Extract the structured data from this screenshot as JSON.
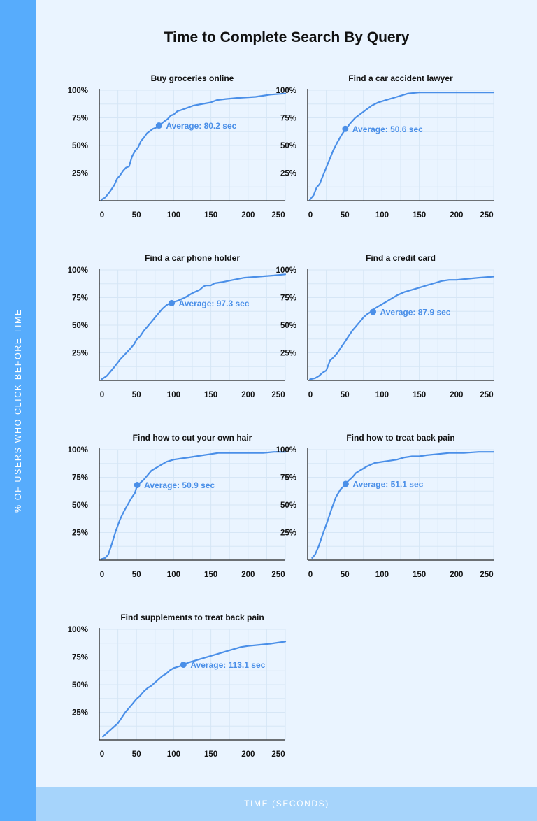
{
  "title": "Time to Complete Search By Query",
  "y_axis_label": "% of users who click before time",
  "x_axis_label": "Time (seconds)",
  "colors": {
    "background": "#eaf4ff",
    "left_bar": "#57acfc",
    "bottom_bar": "#a6d4fb",
    "line": "#4a8fe8",
    "grid": "#d6e6f6",
    "axis": "#222222"
  },
  "chart_data": [
    {
      "type": "line",
      "title": "Buy groceries online",
      "xlim": [
        0,
        250
      ],
      "ylim": [
        0,
        100
      ],
      "xticks": [
        "0",
        "50",
        "100",
        "150",
        "200",
        "250"
      ],
      "yticks": [
        "25%",
        "50%",
        "75%",
        "100%"
      ],
      "grid": true,
      "x": [
        3,
        8,
        14,
        20,
        24,
        28,
        32,
        36,
        40,
        44,
        48,
        52,
        56,
        60,
        64,
        68,
        72,
        76,
        80,
        84,
        88,
        92,
        96,
        100,
        105,
        110,
        118,
        126,
        134,
        142,
        150,
        158,
        170,
        185,
        210,
        230,
        250
      ],
      "y": [
        1,
        3,
        8,
        14,
        20,
        23,
        27,
        30,
        31,
        40,
        45,
        48,
        54,
        57,
        61,
        63,
        65,
        66,
        68,
        70,
        72,
        74,
        77,
        78,
        81,
        82,
        84,
        86,
        87,
        88,
        89,
        91,
        92,
        93,
        94,
        96,
        97
      ],
      "average": {
        "x": 80.2,
        "y": 68,
        "label": "Average: 80.2 sec"
      }
    },
    {
      "type": "line",
      "title": "Find a car accident lawyer",
      "xlim": [
        0,
        250
      ],
      "ylim": [
        0,
        100
      ],
      "xticks": [
        "0",
        "50",
        "100",
        "150",
        "200",
        "250"
      ],
      "yticks": [
        "25%",
        "50%",
        "75%",
        "100%"
      ],
      "grid": true,
      "x": [
        3,
        8,
        12,
        16,
        22,
        28,
        34,
        40,
        46,
        50,
        52,
        56,
        60,
        64,
        70,
        78,
        86,
        95,
        105,
        120,
        135,
        150,
        165,
        185,
        210,
        230,
        250
      ],
      "y": [
        1,
        5,
        12,
        15,
        25,
        35,
        45,
        53,
        60,
        64,
        65,
        69,
        72,
        75,
        78,
        82,
        86,
        89,
        91,
        94,
        97,
        98,
        98,
        98,
        98,
        98,
        98
      ],
      "average": {
        "x": 50.6,
        "y": 65,
        "label": "Average: 50.6 sec"
      }
    },
    {
      "type": "line",
      "title": "Find a car phone holder",
      "xlim": [
        0,
        250
      ],
      "ylim": [
        0,
        100
      ],
      "xticks": [
        "0",
        "50",
        "100",
        "150",
        "200",
        "250"
      ],
      "yticks": [
        "25%",
        "50%",
        "75%",
        "100%"
      ],
      "grid": true,
      "x": [
        3,
        10,
        15,
        20,
        28,
        35,
        42,
        47,
        50,
        55,
        60,
        65,
        70,
        75,
        80,
        85,
        90,
        95,
        100,
        105,
        115,
        125,
        135,
        140,
        143,
        150,
        155,
        165,
        180,
        195,
        215,
        235,
        250
      ],
      "y": [
        1,
        4,
        8,
        12,
        19,
        24,
        29,
        33,
        37,
        40,
        45,
        49,
        53,
        57,
        61,
        65,
        68,
        70,
        71,
        72,
        75,
        79,
        82,
        85,
        86,
        86,
        88,
        89,
        91,
        93,
        94,
        95,
        96
      ],
      "average": {
        "x": 97.3,
        "y": 70,
        "label": "Average: 97.3 sec"
      }
    },
    {
      "type": "line",
      "title": "Find a credit card",
      "xlim": [
        0,
        250
      ],
      "ylim": [
        0,
        100
      ],
      "xticks": [
        "0",
        "50",
        "100",
        "150",
        "200",
        "250"
      ],
      "yticks": [
        "25%",
        "50%",
        "75%",
        "100%"
      ],
      "grid": true,
      "x": [
        3,
        10,
        15,
        20,
        25,
        30,
        35,
        40,
        45,
        50,
        55,
        60,
        65,
        70,
        75,
        80,
        85,
        90,
        95,
        100,
        110,
        120,
        130,
        140,
        150,
        160,
        170,
        180,
        190,
        200,
        215,
        230,
        250
      ],
      "y": [
        1,
        2,
        4,
        7,
        9,
        18,
        21,
        25,
        30,
        35,
        40,
        45,
        49,
        53,
        57,
        60,
        62,
        65,
        67,
        69,
        73,
        77,
        80,
        82,
        84,
        86,
        88,
        90,
        91,
        91,
        92,
        93,
        94
      ],
      "average": {
        "x": 87.9,
        "y": 62,
        "label": "Average: 87.9 sec"
      }
    },
    {
      "type": "line",
      "title": "Find how to cut your own hair",
      "xlim": [
        0,
        250
      ],
      "ylim": [
        0,
        100
      ],
      "xticks": [
        "0",
        "50",
        "100",
        "150",
        "200",
        "250"
      ],
      "yticks": [
        "25%",
        "50%",
        "75%",
        "100%"
      ],
      "grid": true,
      "x": [
        3,
        8,
        12,
        17,
        22,
        28,
        33,
        38,
        43,
        48,
        51,
        55,
        60,
        65,
        70,
        80,
        90,
        100,
        110,
        120,
        130,
        140,
        150,
        160,
        180,
        200,
        220,
        235,
        250
      ],
      "y": [
        1,
        2,
        5,
        15,
        26,
        37,
        44,
        50,
        56,
        61,
        68,
        70,
        73,
        77,
        81,
        85,
        89,
        91,
        92,
        93,
        94,
        95,
        96,
        97,
        97,
        97,
        97,
        98,
        98
      ],
      "average": {
        "x": 50.9,
        "y": 68,
        "label": "Average: 50.9 sec"
      }
    },
    {
      "type": "line",
      "title": "Find how to treat back pain",
      "xlim": [
        0,
        250
      ],
      "ylim": [
        0,
        100
      ],
      "xticks": [
        "0",
        "50",
        "100",
        "150",
        "200",
        "250"
      ],
      "yticks": [
        "25%",
        "50%",
        "75%",
        "100%"
      ],
      "grid": true,
      "x": [
        6,
        10,
        15,
        20,
        26,
        32,
        38,
        44,
        50,
        51,
        55,
        60,
        65,
        70,
        80,
        90,
        100,
        110,
        120,
        130,
        140,
        150,
        160,
        175,
        190,
        210,
        230,
        250
      ],
      "y": [
        2,
        5,
        13,
        23,
        34,
        46,
        57,
        64,
        68,
        69,
        72,
        75,
        79,
        81,
        85,
        88,
        89,
        90,
        91,
        93,
        94,
        94,
        95,
        96,
        97,
        97,
        98,
        98
      ],
      "average": {
        "x": 51.1,
        "y": 69,
        "label": "Average: 51.1 sec"
      }
    },
    {
      "type": "line",
      "title": "Find supplements to treat back pain",
      "xlim": [
        0,
        250
      ],
      "ylim": [
        0,
        100
      ],
      "xticks": [
        "0",
        "50",
        "100",
        "150",
        "200",
        "250"
      ],
      "yticks": [
        "25%",
        "50%",
        "75%",
        "100%"
      ],
      "grid": true,
      "x": [
        5,
        10,
        15,
        20,
        25,
        30,
        35,
        40,
        45,
        50,
        55,
        60,
        65,
        70,
        75,
        80,
        85,
        90,
        95,
        100,
        110,
        120,
        130,
        140,
        150,
        160,
        170,
        180,
        185,
        190,
        200,
        215,
        230,
        250
      ],
      "y": [
        3,
        6,
        9,
        12,
        15,
        20,
        25,
        29,
        33,
        37,
        40,
        44,
        47,
        49,
        52,
        55,
        58,
        60,
        63,
        65,
        67,
        70,
        72,
        74,
        76,
        78,
        80,
        82,
        83,
        84,
        85,
        86,
        87,
        89
      ],
      "average": {
        "x": 113.1,
        "y": 68,
        "label": "Average: 113.1 sec"
      }
    }
  ]
}
